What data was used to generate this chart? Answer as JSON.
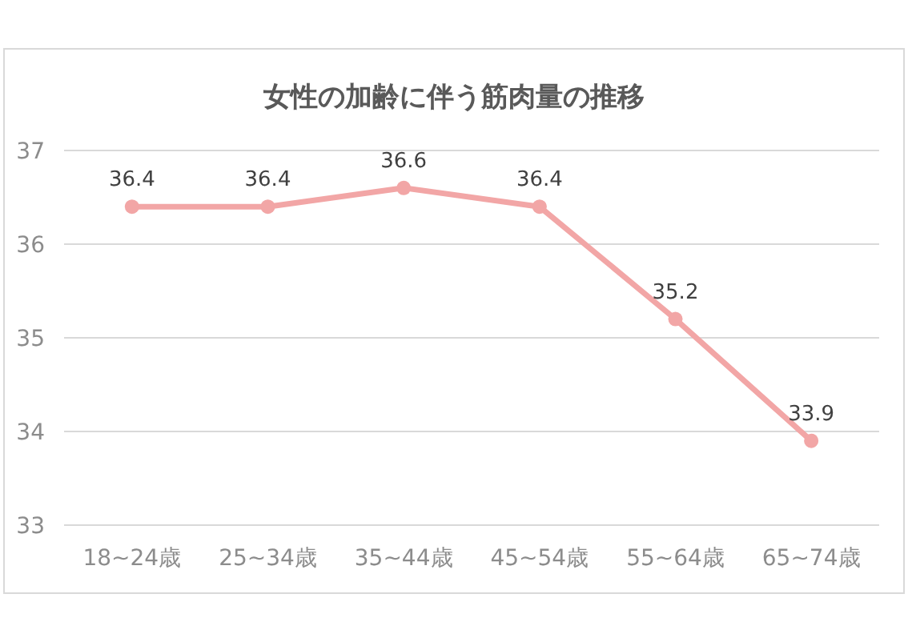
{
  "chart_data": {
    "type": "line",
    "title": "女性の加齢に伴う筋肉量の推移",
    "categories": [
      "18~24歳",
      "25~34歳",
      "35~44歳",
      "45~54歳",
      "55~64歳",
      "65~74歳"
    ],
    "values": [
      36.4,
      36.4,
      36.6,
      36.4,
      35.2,
      33.9
    ],
    "color": "#f2a6a6",
    "ylim": [
      33,
      37
    ],
    "yticks": [
      33,
      34,
      35,
      36,
      37
    ],
    "grid": "y",
    "data_labels": true,
    "marker": "circle",
    "line_style": "solid"
  }
}
